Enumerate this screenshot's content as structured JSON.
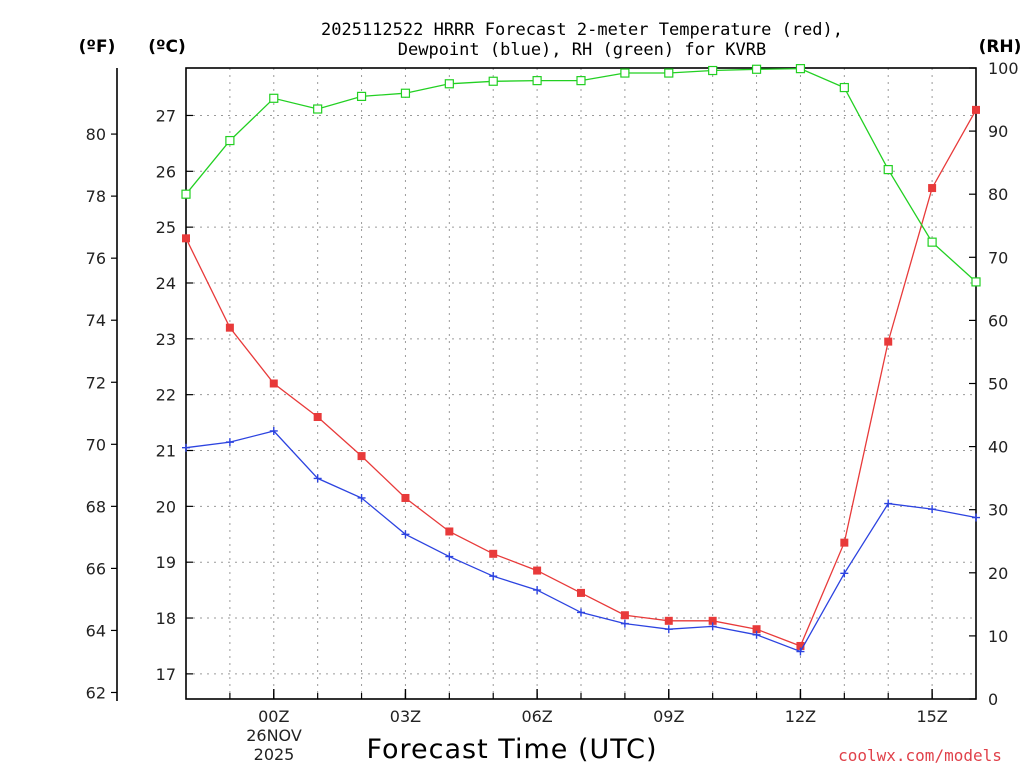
{
  "chart_data": {
    "type": "line",
    "title_line1": "2025112522 HRRR Forecast 2-meter Temperature (red),",
    "title_line2": "Dewpoint (blue), RH (green) for KVRB",
    "unit_f": "(ºF)",
    "unit_c": "(ºC)",
    "unit_rh": "(RH)",
    "xlabel": "Forecast Time (UTC)",
    "credit": "coolwx.com/models",
    "date_line1": "26NOV",
    "date_line2": "2025",
    "x_hours": [
      -2,
      -1,
      0,
      1,
      2,
      3,
      4,
      5,
      6,
      7,
      8,
      9,
      10,
      11,
      12,
      13,
      14,
      15,
      16
    ],
    "xlim": [
      -2,
      16
    ],
    "x_ticks": [
      {
        "hour": 0,
        "label": "00Z"
      },
      {
        "hour": 3,
        "label": "03Z"
      },
      {
        "hour": 6,
        "label": "06Z"
      },
      {
        "hour": 9,
        "label": "09Z"
      },
      {
        "hour": 12,
        "label": "12Z"
      },
      {
        "hour": 15,
        "label": "15Z"
      }
    ],
    "celsius_lim": [
      16.55,
      27.85
    ],
    "celsius_ticks": [
      "17",
      "18",
      "19",
      "20",
      "21",
      "22",
      "23",
      "24",
      "25",
      "26",
      "27"
    ],
    "fahrenheit_ticks": [
      "62",
      "64",
      "66",
      "68",
      "70",
      "72",
      "74",
      "76",
      "78",
      "80"
    ],
    "rh_lim": [
      0,
      100
    ],
    "rh_ticks": [
      "0",
      "10",
      "20",
      "30",
      "40",
      "50",
      "60",
      "70",
      "80",
      "90",
      "100"
    ],
    "series": [
      {
        "name": "Temperature",
        "unit": "C",
        "color": "#e83a3a",
        "marker": "filled-square",
        "values": [
          24.8,
          23.2,
          22.2,
          21.6,
          20.9,
          20.15,
          19.55,
          19.15,
          18.85,
          18.45,
          18.05,
          17.95,
          17.95,
          17.8,
          17.5,
          19.35,
          22.95,
          25.7,
          27.1
        ]
      },
      {
        "name": "Dewpoint",
        "unit": "C",
        "color": "#2c43e0",
        "marker": "plus",
        "values": [
          21.05,
          21.15,
          21.35,
          20.5,
          20.15,
          19.5,
          19.1,
          18.75,
          18.5,
          18.1,
          17.9,
          17.8,
          17.85,
          17.7,
          17.4,
          18.8,
          20.05,
          19.95,
          19.8
        ]
      },
      {
        "name": "RH",
        "unit": "%",
        "color": "#22d022",
        "marker": "hollow-square",
        "values": [
          80,
          88.5,
          95.2,
          93.5,
          95.5,
          96.0,
          97.5,
          97.9,
          98.0,
          98.0,
          99.2,
          99.2,
          99.6,
          99.8,
          99.9,
          96.9,
          83.9,
          72.4,
          66.1
        ]
      }
    ]
  }
}
